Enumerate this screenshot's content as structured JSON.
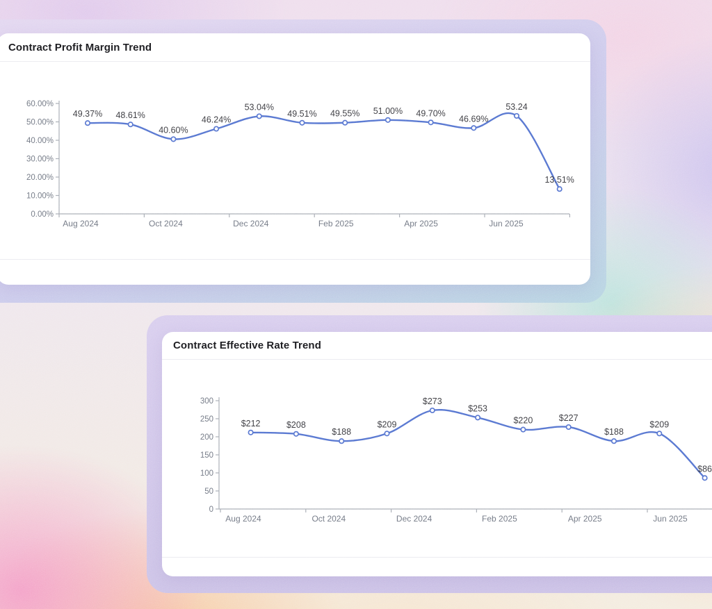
{
  "cards": [
    {
      "title": "Contract Profit Margin Trend"
    },
    {
      "title": "Contract Effective Rate Trend"
    }
  ],
  "chart_data": [
    {
      "type": "line",
      "title": "Contract Profit Margin Trend",
      "x": [
        "Aug 2024",
        "Sep 2024",
        "Oct 2024",
        "Nov 2024",
        "Dec 2024",
        "Jan 2025",
        "Feb 2025",
        "Mar 2025",
        "Apr 2025",
        "May 2025",
        "Jun 2025",
        "Jul 2025"
      ],
      "values": [
        49.37,
        48.61,
        40.6,
        46.24,
        53.04,
        49.51,
        49.55,
        51.0,
        49.7,
        46.69,
        53.24,
        13.51
      ],
      "point_labels": [
        "49.37%",
        "48.61%",
        "40.60%",
        "46.24%",
        "53.04%",
        "49.51%",
        "49.55%",
        "51.00%",
        "49.70%",
        "46.69%",
        "53.24",
        "13.51%"
      ],
      "x_tick_labels": [
        "Aug 2024",
        "Oct 2024",
        "Dec 2024",
        "Feb 2025",
        "Apr 2025",
        "Jun 2025"
      ],
      "y_tick_labels": [
        "0.00%",
        "10.00%",
        "20.00%",
        "30.00%",
        "40.00%",
        "50.00%",
        "60.00%"
      ],
      "ylim": [
        0,
        60
      ],
      "xlabel": "",
      "ylabel": "",
      "grid": false,
      "legend_position": "none",
      "smooth": true,
      "marker": "open-circle"
    },
    {
      "type": "line",
      "title": "Contract Effective Rate Trend",
      "x": [
        "Aug 2024",
        "Sep 2024",
        "Oct 2024",
        "Nov 2024",
        "Dec 2024",
        "Jan 2025",
        "Feb 2025",
        "Mar 2025",
        "Apr 2025",
        "May 2025",
        "Jun 2025"
      ],
      "values": [
        212,
        208,
        188,
        209,
        273,
        253,
        220,
        227,
        188,
        209,
        86
      ],
      "point_labels": [
        "$212",
        "$208",
        "$188",
        "$209",
        "$273",
        "$253",
        "$220",
        "$227",
        "$188",
        "$209",
        "$86"
      ],
      "x_tick_labels": [
        "Aug 2024",
        "Oct 2024",
        "Dec 2024",
        "Feb 2025",
        "Apr 2025",
        "Jun 2025"
      ],
      "y_tick_labels": [
        "0",
        "50",
        "100",
        "150",
        "200",
        "250",
        "300"
      ],
      "ylim": [
        0,
        300
      ],
      "xlabel": "",
      "ylabel": "",
      "grid": false,
      "legend_position": "none",
      "smooth": true,
      "marker": "open-circle"
    }
  ],
  "theme": {
    "line_color": "#5572cf",
    "marker_fill": "#ffffff",
    "card_background": "#ffffff",
    "title_color": "#1b1b1f",
    "axis_color": "#a6abb3",
    "tick_label_color": "#6e7480",
    "data_label_color": "#3b3b40",
    "glow_lavender": "#d3c9ec",
    "background_palette": [
      "#efdeed",
      "#f496c6",
      "#f8c498",
      "#ade2d9",
      "#c7bdee",
      "#f3d3e5"
    ]
  }
}
